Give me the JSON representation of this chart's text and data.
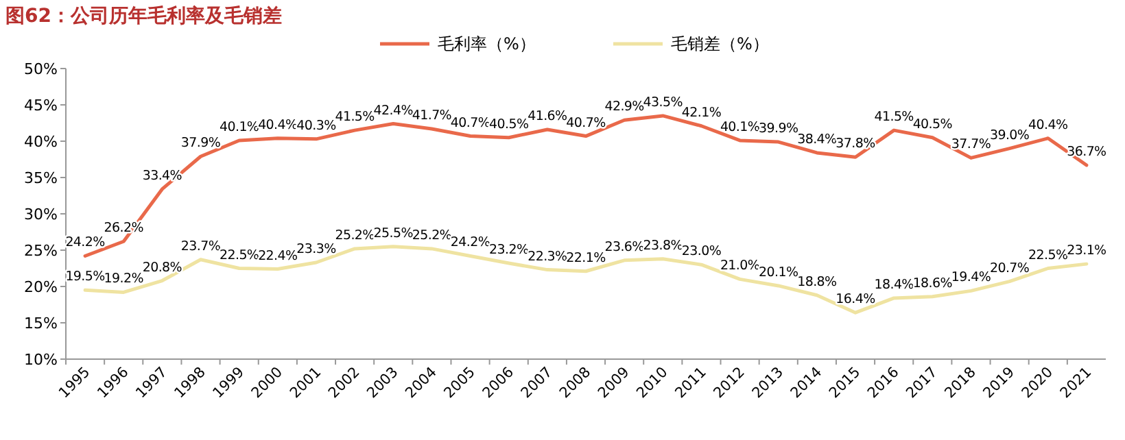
{
  "chart_data": {
    "type": "line",
    "title": "图62：公司历年毛利率及毛销差",
    "categories": [
      "1995",
      "1996",
      "1997",
      "1998",
      "1999",
      "2000",
      "2001",
      "2002",
      "2003",
      "2004",
      "2005",
      "2006",
      "2007",
      "2008",
      "2009",
      "2010",
      "2011",
      "2012",
      "2013",
      "2014",
      "2015",
      "2016",
      "2017",
      "2018",
      "2019",
      "2020",
      "2021"
    ],
    "series": [
      {
        "name": "毛利率（%）",
        "color": "#e9694a",
        "values": [
          24.2,
          26.2,
          33.4,
          37.9,
          40.1,
          40.4,
          40.3,
          41.5,
          42.4,
          41.7,
          40.7,
          40.5,
          41.6,
          40.7,
          42.9,
          43.5,
          42.1,
          40.1,
          39.9,
          38.4,
          37.8,
          41.5,
          40.5,
          37.7,
          39.0,
          40.4,
          36.7
        ],
        "value_labels": [
          "24.2%",
          "26.2%",
          "33.4%",
          "37.9%",
          "40.1%",
          "40.4%",
          "40.3%",
          "41.5%",
          "42.4%",
          "41.7%",
          "40.7%",
          "40.5%",
          "41.6%",
          "40.7%",
          "42.9%",
          "43.5%",
          "42.1%",
          "40.1%",
          "39.9%",
          "38.4%",
          "37.8%",
          "41.5%",
          "40.5%",
          "37.7%",
          "39.0%",
          "40.4%",
          "36.7%"
        ]
      },
      {
        "name": "毛销差（%）",
        "color": "#efe3a1",
        "values": [
          19.5,
          19.2,
          20.8,
          23.7,
          22.5,
          22.4,
          23.3,
          25.2,
          25.5,
          25.2,
          24.2,
          23.2,
          22.3,
          22.1,
          23.6,
          23.8,
          23.0,
          21.0,
          20.1,
          18.8,
          16.4,
          18.4,
          18.6,
          19.4,
          20.7,
          22.5,
          23.1
        ],
        "value_labels": [
          "19.5%",
          "19.2%",
          "20.8%",
          "23.7%",
          "22.5%",
          "22.4%",
          "23.3%",
          "25.2%",
          "25.5%",
          "25.2%",
          "24.2%",
          "23.2%",
          "22.3%",
          "22.1%",
          "23.6%",
          "23.8%",
          "23.0%",
          "21.0%",
          "20.1%",
          "18.8%",
          "16.4%",
          "18.4%",
          "18.6%",
          "19.4%",
          "20.7%",
          "22.5%",
          "23.1%"
        ]
      }
    ],
    "ylim": [
      10,
      50
    ],
    "yticks": [
      {
        "value": 10,
        "label": "10%"
      },
      {
        "value": 15,
        "label": "15%"
      },
      {
        "value": 20,
        "label": "20%"
      },
      {
        "value": 25,
        "label": "25%"
      },
      {
        "value": 30,
        "label": "30%"
      },
      {
        "value": 35,
        "label": "35%"
      },
      {
        "value": 40,
        "label": "40%"
      },
      {
        "value": 45,
        "label": "45%"
      },
      {
        "value": 50,
        "label": "50%"
      }
    ],
    "legend": "top",
    "grid": false
  }
}
